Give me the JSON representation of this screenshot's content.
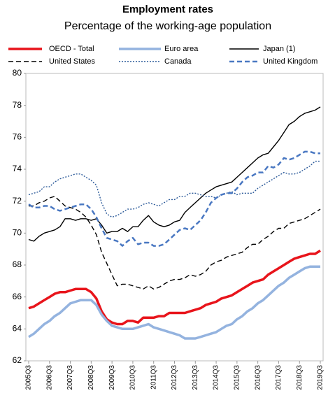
{
  "chart_data": {
    "type": "line",
    "title": "Employment rates",
    "subtitle": "Percentage of the working-age population",
    "categories": [
      "2005Q3",
      null,
      null,
      null,
      "2006Q3",
      null,
      null,
      null,
      "2007Q3",
      null,
      null,
      null,
      "2008Q3",
      null,
      null,
      null,
      "2009Q3",
      null,
      null,
      null,
      "2010Q3",
      null,
      null,
      null,
      "2011Q3",
      null,
      null,
      null,
      "2012Q3",
      null,
      null,
      null,
      "2013Q3",
      null,
      null,
      null,
      "2014Q3",
      null,
      null,
      null,
      "2015Q3",
      null,
      null,
      null,
      "2016Q3",
      null,
      null,
      null,
      "2017Q3",
      null,
      null,
      null,
      "2018Q3",
      null,
      null,
      null,
      "2019Q3"
    ],
    "ylim": [
      62,
      80
    ],
    "yticks": [
      62,
      64,
      66,
      68,
      70,
      72,
      74,
      76,
      78,
      80
    ],
    "grid": false,
    "series": [
      {
        "name": "OECD - Total",
        "color": "#e8141b",
        "dash": "solid",
        "width": 3.5,
        "values": [
          65.3,
          65.4,
          65.6,
          65.8,
          66.0,
          66.2,
          66.3,
          66.3,
          66.4,
          66.5,
          66.5,
          66.5,
          66.3,
          65.9,
          65.1,
          64.6,
          64.4,
          64.3,
          64.3,
          64.5,
          64.5,
          64.4,
          64.7,
          64.7,
          64.7,
          64.8,
          64.8,
          65.0,
          65.0,
          65.0,
          65.0,
          65.1,
          65.2,
          65.3,
          65.5,
          65.6,
          65.7,
          65.9,
          66.0,
          66.1,
          66.3,
          66.5,
          66.7,
          66.9,
          67.0,
          67.1,
          67.4,
          67.6,
          67.8,
          68.0,
          68.2,
          68.4,
          68.5,
          68.6,
          68.7,
          68.7,
          68.9
        ]
      },
      {
        "name": "Euro area",
        "color": "#94b3df",
        "dash": "solid",
        "width": 3.5,
        "values": [
          63.5,
          63.7,
          64.0,
          64.3,
          64.5,
          64.8,
          65.0,
          65.3,
          65.6,
          65.7,
          65.8,
          65.8,
          65.8,
          65.5,
          64.9,
          64.5,
          64.2,
          64.1,
          64.0,
          64.0,
          64.0,
          64.1,
          64.2,
          64.3,
          64.1,
          64.0,
          63.9,
          63.8,
          63.7,
          63.6,
          63.4,
          63.4,
          63.4,
          63.5,
          63.6,
          63.7,
          63.8,
          64.0,
          64.2,
          64.3,
          64.6,
          64.8,
          65.1,
          65.3,
          65.6,
          65.8,
          66.1,
          66.4,
          66.7,
          66.9,
          67.2,
          67.4,
          67.6,
          67.8,
          67.9,
          67.9,
          67.9
        ]
      },
      {
        "name": "Japan (1)",
        "color": "#000000",
        "dash": "solid",
        "width": 1.4,
        "values": [
          69.6,
          69.5,
          69.8,
          70.0,
          70.1,
          70.2,
          70.4,
          70.9,
          70.9,
          70.8,
          70.9,
          70.9,
          70.8,
          70.9,
          70.5,
          70.0,
          70.1,
          70.1,
          70.3,
          70.1,
          70.4,
          70.4,
          70.8,
          71.1,
          70.7,
          70.5,
          70.4,
          70.5,
          70.7,
          70.8,
          71.3,
          71.6,
          71.9,
          72.2,
          72.5,
          72.7,
          72.9,
          73.0,
          73.1,
          73.2,
          73.5,
          73.8,
          74.1,
          74.4,
          74.7,
          74.9,
          75.0,
          75.4,
          75.8,
          76.3,
          76.8,
          77.0,
          77.3,
          77.5,
          77.6,
          77.7,
          77.9
        ]
      },
      {
        "name": "United States",
        "color": "#000000",
        "dash": "dashed",
        "width": 1.4,
        "values": [
          71.7,
          71.7,
          71.9,
          72.0,
          72.2,
          72.3,
          72.0,
          71.7,
          71.6,
          71.5,
          71.3,
          71.0,
          70.5,
          69.9,
          68.8,
          68.1,
          67.4,
          66.7,
          66.8,
          66.8,
          66.7,
          66.6,
          66.5,
          66.7,
          66.5,
          66.6,
          66.8,
          67.0,
          67.1,
          67.1,
          67.2,
          67.4,
          67.3,
          67.4,
          67.6,
          68.0,
          68.2,
          68.3,
          68.5,
          68.6,
          68.7,
          68.8,
          69.1,
          69.3,
          69.3,
          69.6,
          69.8,
          70.1,
          70.3,
          70.3,
          70.6,
          70.7,
          70.8,
          70.9,
          71.1,
          71.3,
          71.5
        ]
      },
      {
        "name": "Canada",
        "color": "#2d5b9a",
        "dash": "dotted",
        "width": 1.4,
        "values": [
          72.4,
          72.5,
          72.6,
          72.9,
          72.9,
          73.2,
          73.4,
          73.5,
          73.6,
          73.7,
          73.7,
          73.5,
          73.3,
          73.0,
          71.9,
          71.2,
          71.0,
          71.1,
          71.3,
          71.5,
          71.5,
          71.6,
          71.8,
          71.9,
          71.8,
          71.7,
          71.9,
          72.1,
          72.1,
          72.3,
          72.3,
          72.5,
          72.5,
          72.4,
          72.3,
          72.3,
          72.2,
          72.4,
          72.5,
          72.6,
          72.4,
          72.5,
          72.5,
          72.5,
          72.8,
          73.0,
          73.2,
          73.4,
          73.6,
          73.8,
          73.7,
          73.7,
          73.8,
          74.0,
          74.2,
          74.5,
          74.5
        ]
      },
      {
        "name": "United Kingdom",
        "color": "#4a78c2",
        "dash": "dashed",
        "width": 2.5,
        "values": [
          71.8,
          71.6,
          71.6,
          71.7,
          71.7,
          71.5,
          71.4,
          71.5,
          71.6,
          71.7,
          71.8,
          71.8,
          71.5,
          71.0,
          70.3,
          69.7,
          69.6,
          69.5,
          69.2,
          69.5,
          69.7,
          69.3,
          69.4,
          69.4,
          69.2,
          69.2,
          69.3,
          69.6,
          69.9,
          70.2,
          70.3,
          70.2,
          70.5,
          70.8,
          71.3,
          71.9,
          72.2,
          72.4,
          72.5,
          72.5,
          72.8,
          73.2,
          73.5,
          73.6,
          73.8,
          73.8,
          74.2,
          74.1,
          74.3,
          74.7,
          74.6,
          74.7,
          74.9,
          75.1,
          75.1,
          75.0,
          75.0
        ]
      }
    ]
  }
}
